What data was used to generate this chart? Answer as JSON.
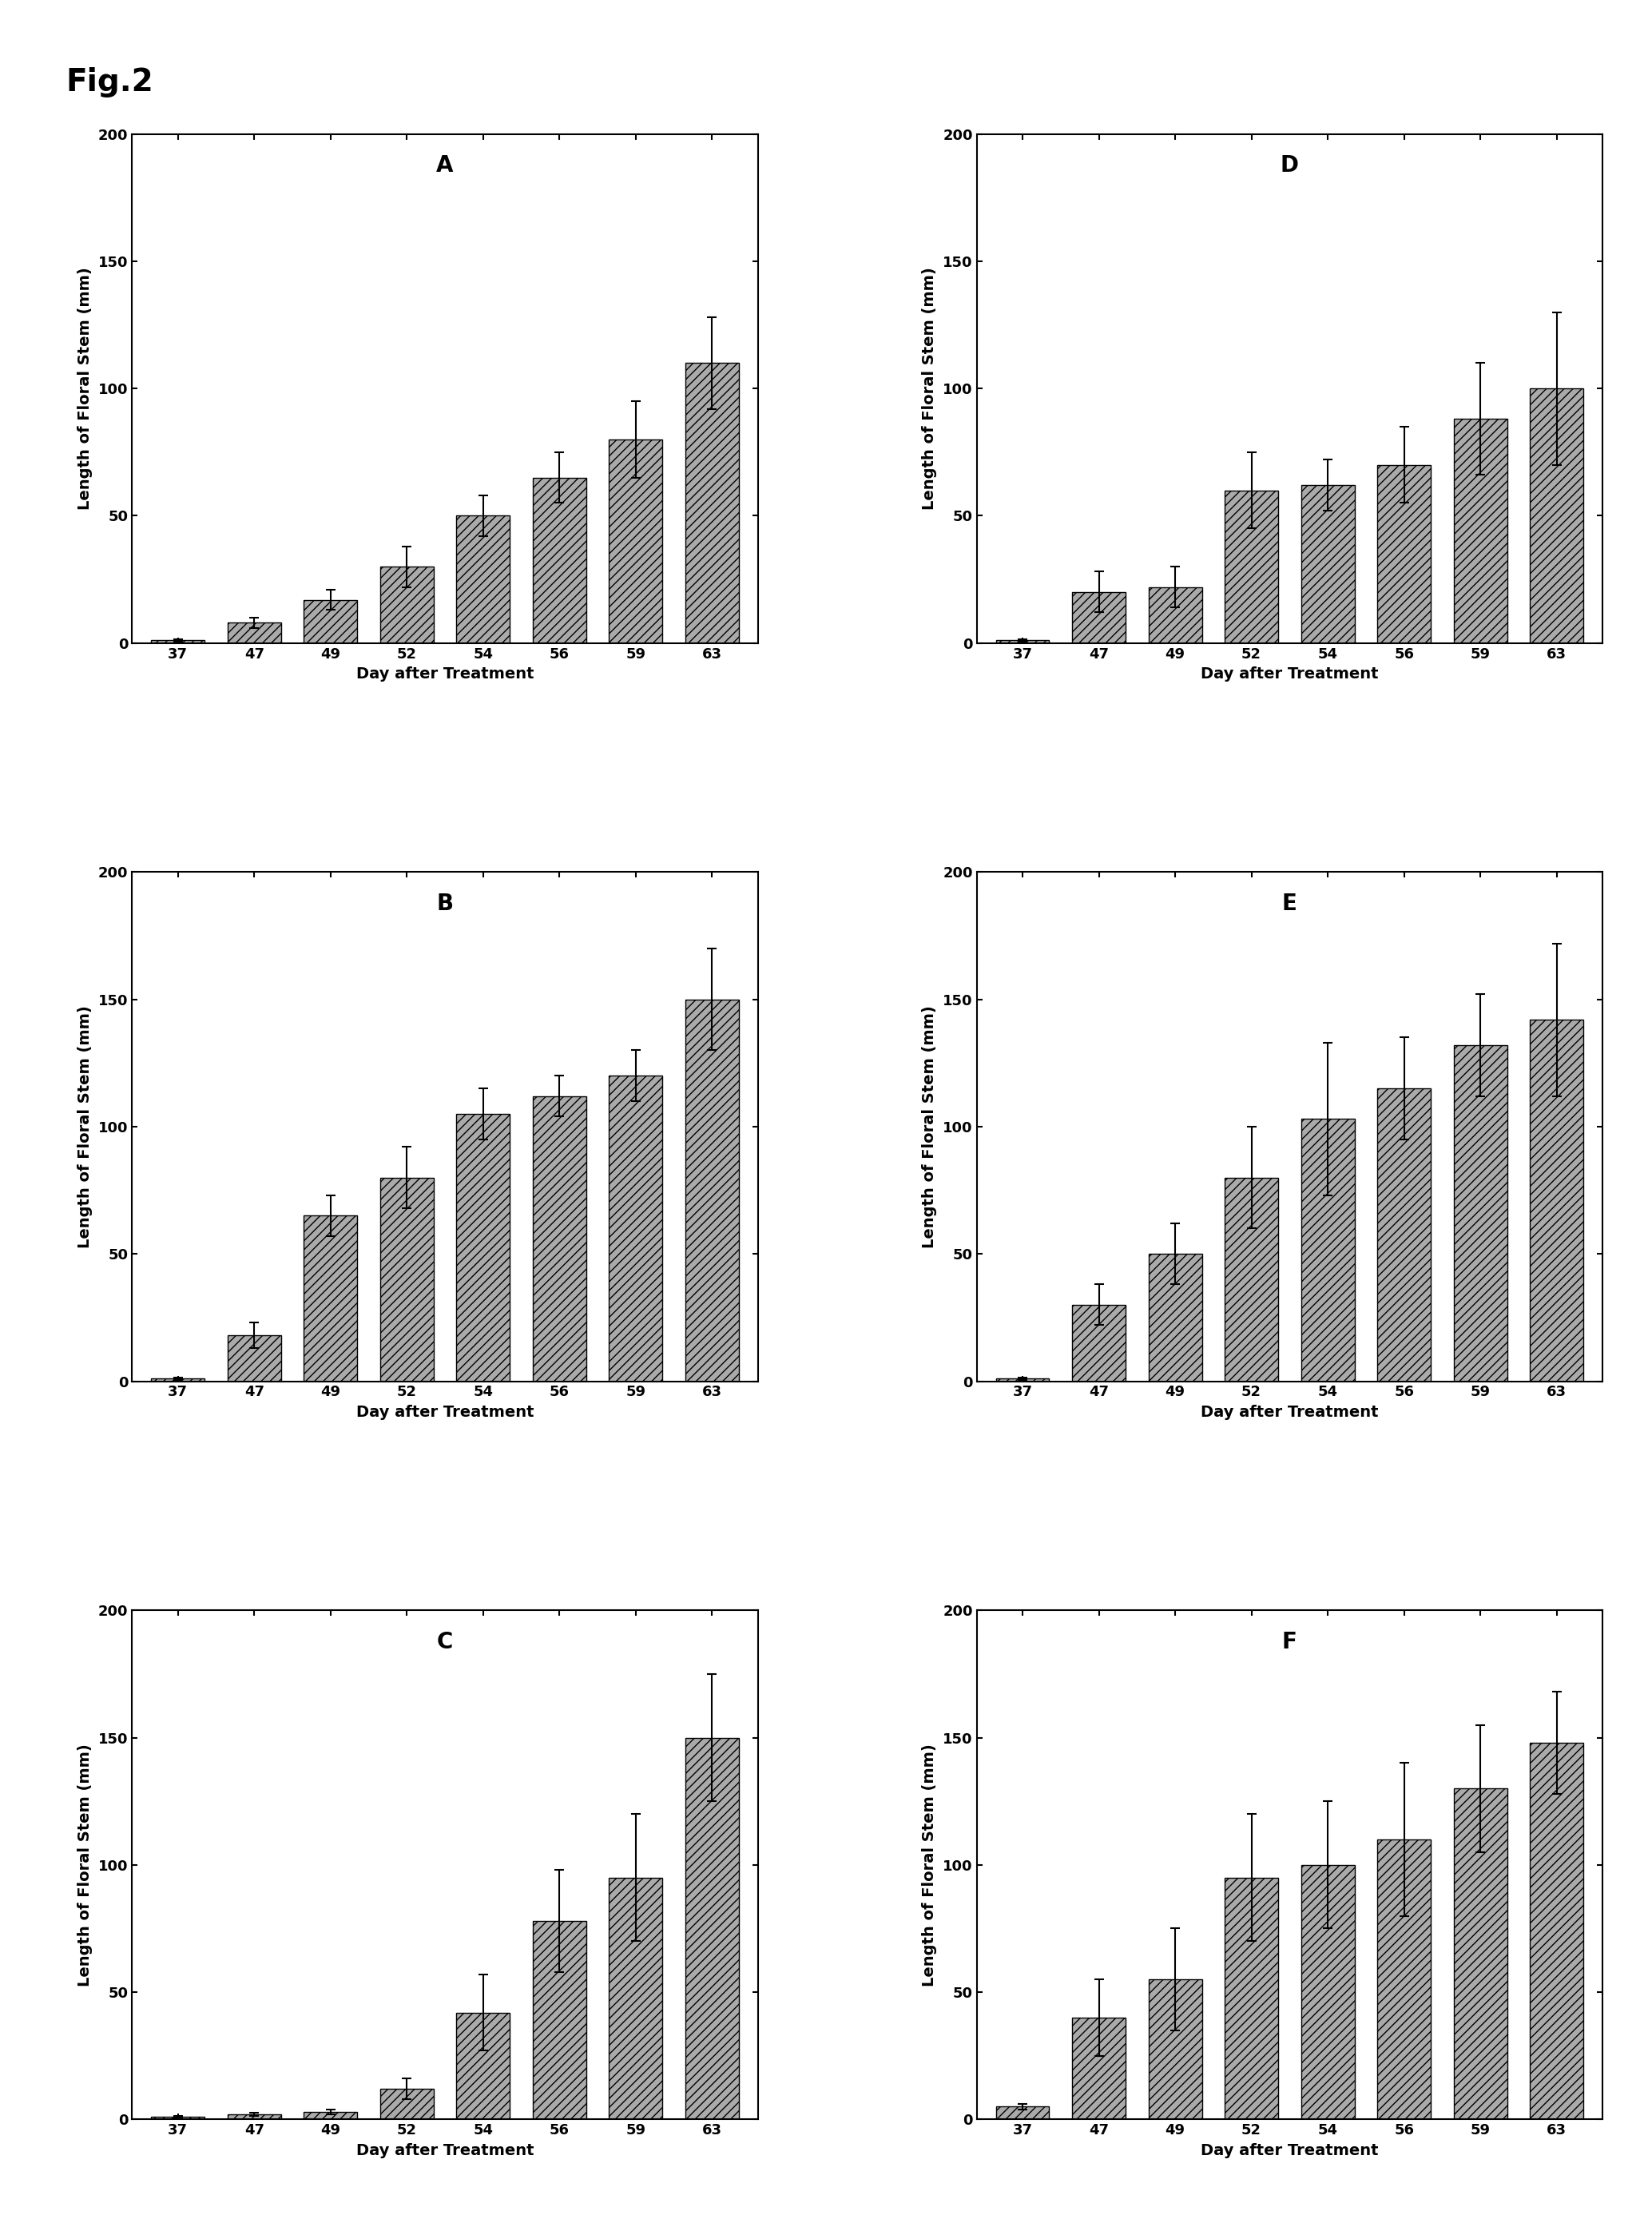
{
  "fig_title": "Fig.2",
  "categories": [
    "37",
    "47",
    "49",
    "52",
    "54",
    "56",
    "59",
    "63"
  ],
  "xlabel": "Day after Treatment",
  "ylabel": "Length of Floral Stem (mm)",
  "ylim": [
    0,
    200
  ],
  "yticks": [
    0,
    50,
    100,
    150,
    200
  ],
  "panels": [
    {
      "label": "A",
      "values": [
        1,
        8,
        17,
        30,
        50,
        65,
        80,
        110
      ],
      "errors": [
        0.5,
        2,
        4,
        8,
        8,
        10,
        15,
        18
      ]
    },
    {
      "label": "B",
      "values": [
        1,
        18,
        65,
        80,
        105,
        112,
        120,
        150
      ],
      "errors": [
        0.5,
        5,
        8,
        12,
        10,
        8,
        10,
        20
      ]
    },
    {
      "label": "C",
      "values": [
        1,
        2,
        3,
        12,
        42,
        78,
        95,
        150
      ],
      "errors": [
        0.5,
        0.5,
        1,
        4,
        15,
        20,
        25,
        25
      ]
    },
    {
      "label": "D",
      "values": [
        1,
        20,
        22,
        60,
        62,
        70,
        88,
        100
      ],
      "errors": [
        0.5,
        8,
        8,
        15,
        10,
        15,
        22,
        30
      ]
    },
    {
      "label": "E",
      "values": [
        1,
        30,
        50,
        80,
        103,
        115,
        132,
        142
      ],
      "errors": [
        0.5,
        8,
        12,
        20,
        30,
        20,
        20,
        30
      ]
    },
    {
      "label": "F",
      "values": [
        5,
        40,
        55,
        95,
        100,
        110,
        130,
        148
      ],
      "errors": [
        1,
        15,
        20,
        25,
        25,
        30,
        25,
        20
      ]
    }
  ],
  "bar_color": "#aaaaaa",
  "bar_hatch": "///",
  "bar_edgecolor": "#000000",
  "background_color": "#ffffff",
  "fig_title_fontsize": 28,
  "panel_label_fontsize": 20,
  "axis_label_fontsize": 14,
  "tick_label_fontsize": 13
}
